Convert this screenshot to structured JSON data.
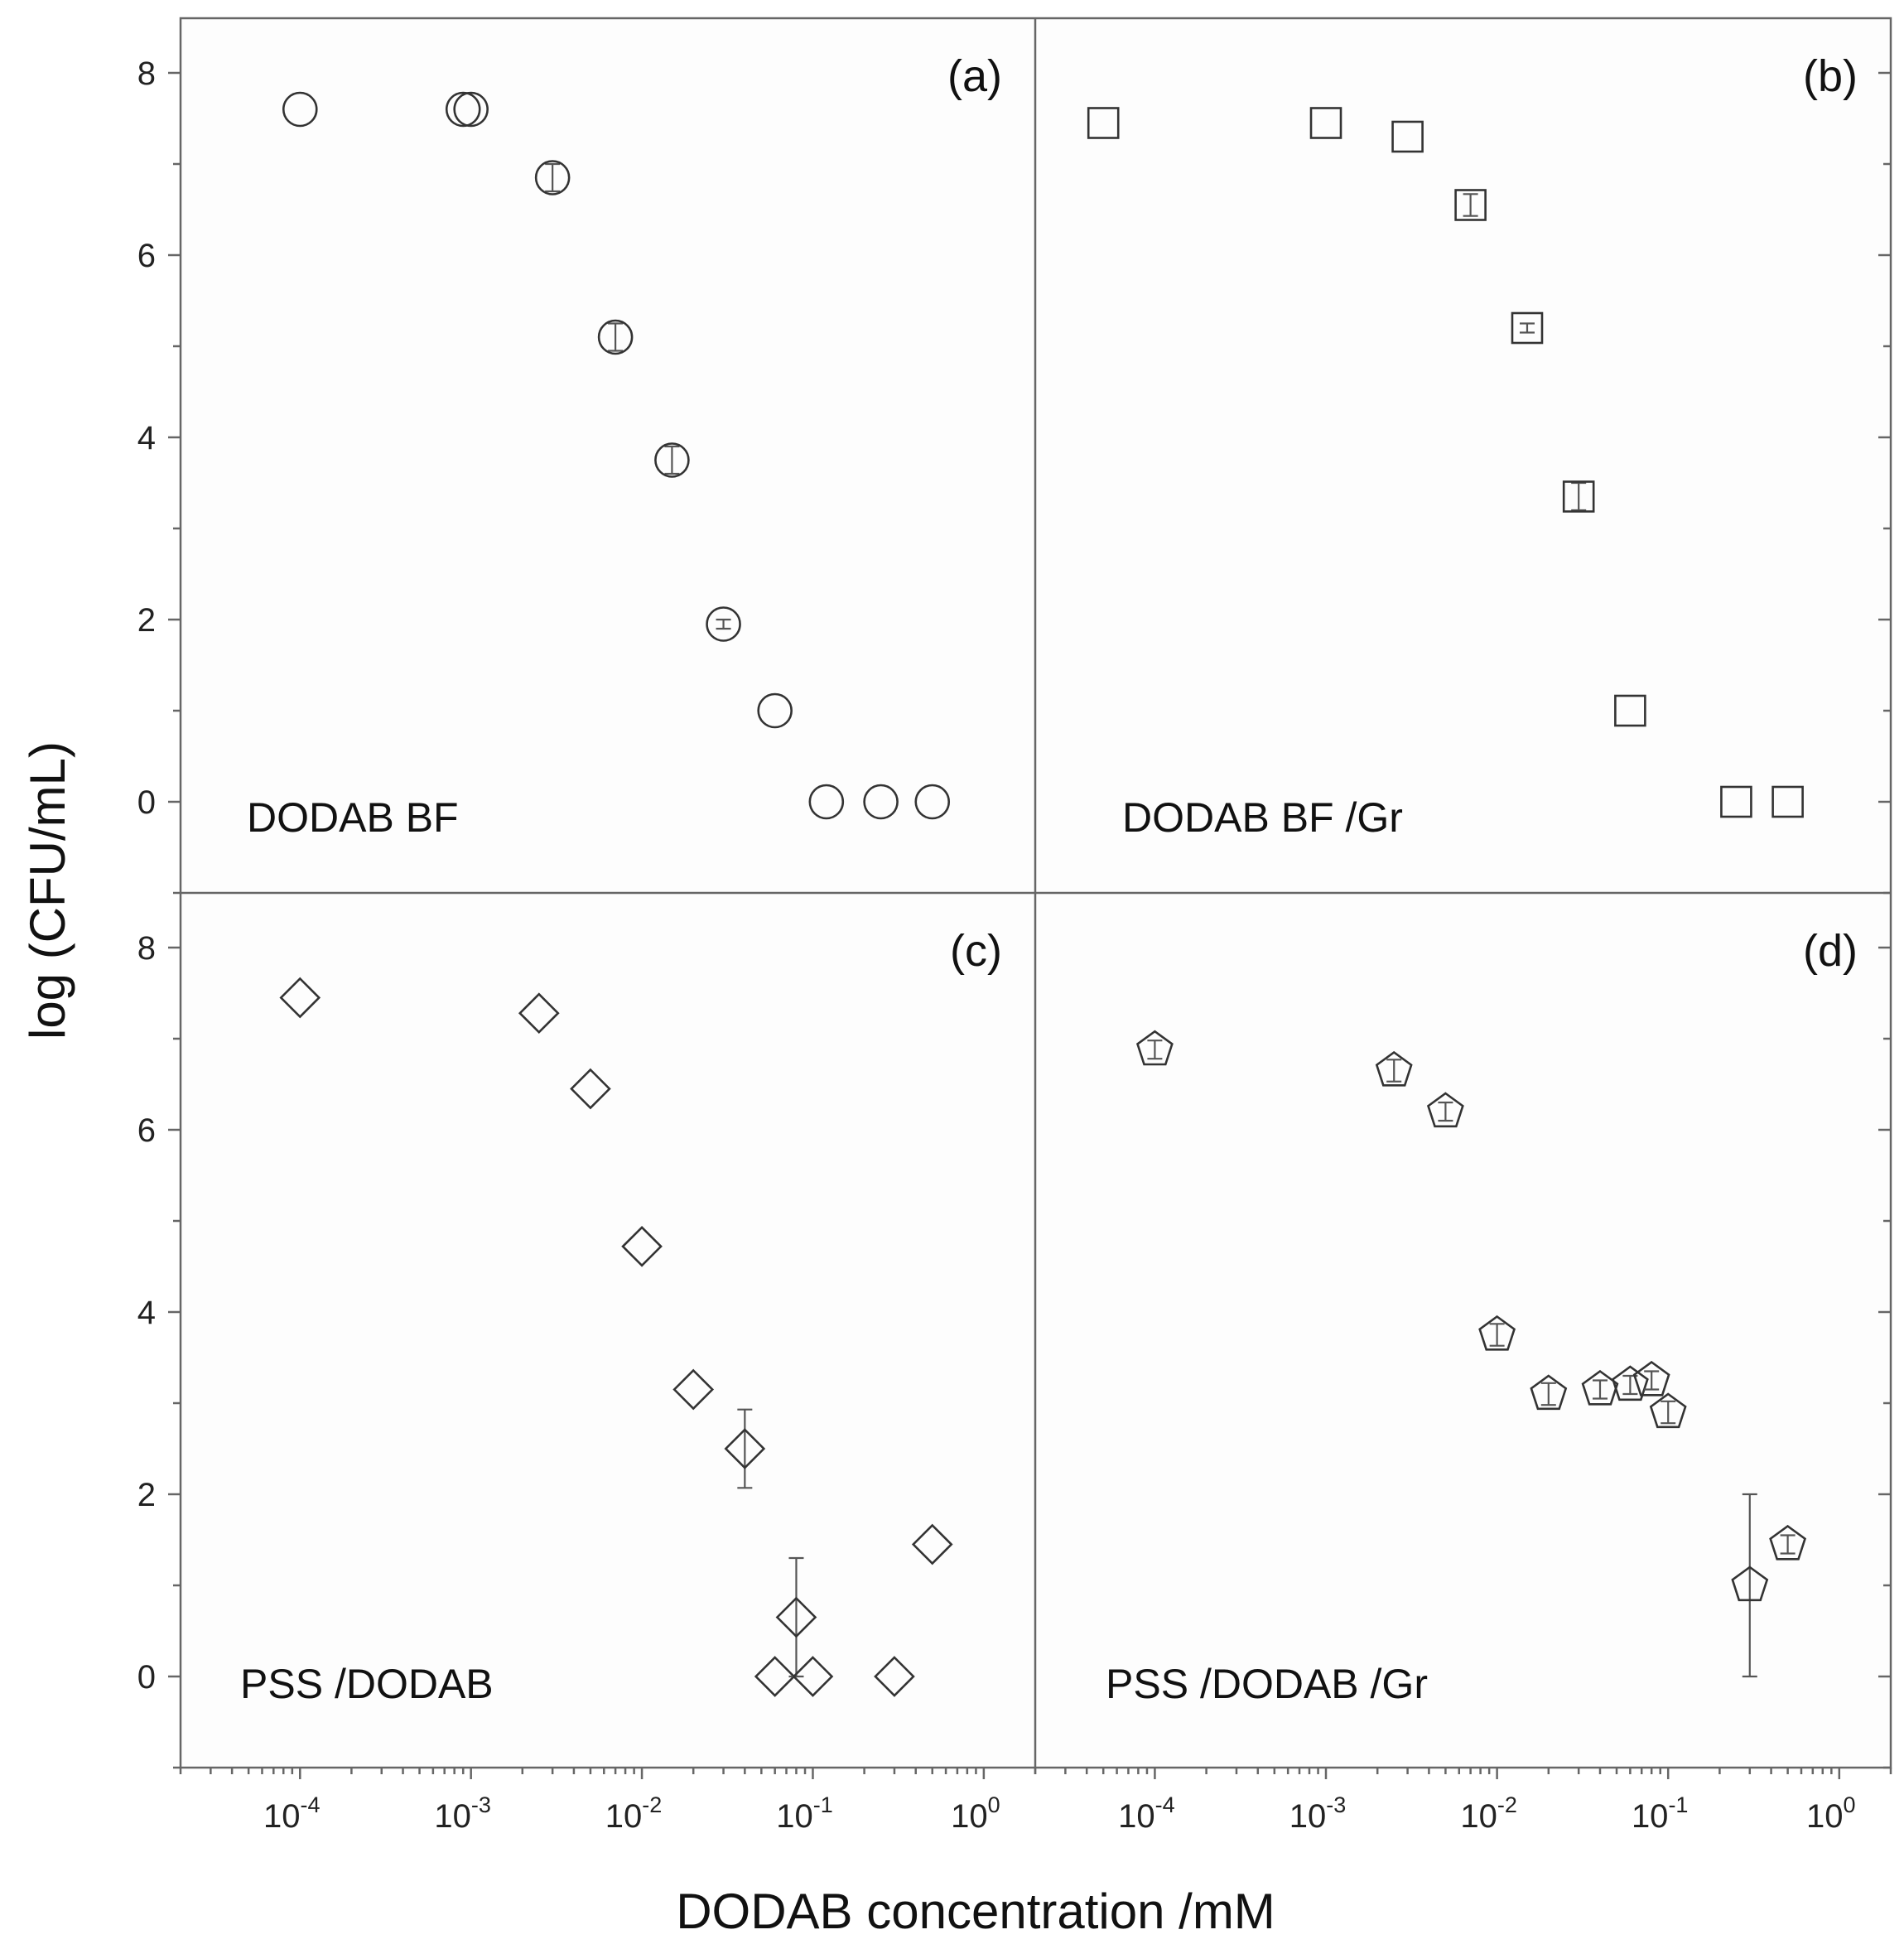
{
  "chart_data": {
    "type": "scatter",
    "xlabel": "DODAB concentration /mM",
    "ylabel": "log (CFU/mL)",
    "x_scale": "log",
    "x_tick_labels": [
      {
        "base": "10",
        "exp": "-4",
        "value": 0.0001
      },
      {
        "base": "10",
        "exp": "-3",
        "value": 0.001
      },
      {
        "base": "10",
        "exp": "-2",
        "value": 0.01
      },
      {
        "base": "10",
        "exp": "-1",
        "value": 0.1
      },
      {
        "base": "10",
        "exp": "0",
        "value": 1
      }
    ],
    "y_tick_labels": [
      0,
      2,
      4,
      6,
      8
    ],
    "xlim": [
      2e-05,
      2
    ],
    "ylim": [
      -1,
      8.6
    ],
    "panels": [
      {
        "letter": "(a)",
        "name": "DODAB BF",
        "marker": "circle",
        "points": [
          {
            "x": 0.0001,
            "y": 7.6,
            "err": 0
          },
          {
            "x": 0.0009,
            "y": 7.6,
            "err": 0
          },
          {
            "x": 0.001,
            "y": 7.6,
            "err": 0
          },
          {
            "x": 0.003,
            "y": 6.85,
            "err": 0.15
          },
          {
            "x": 0.007,
            "y": 5.1,
            "err": 0.15
          },
          {
            "x": 0.015,
            "y": 3.75,
            "err": 0.15
          },
          {
            "x": 0.03,
            "y": 1.95,
            "err": 0.05
          },
          {
            "x": 0.06,
            "y": 1.0,
            "err": 0
          },
          {
            "x": 0.12,
            "y": 0.0,
            "err": 0
          },
          {
            "x": 0.25,
            "y": 0.0,
            "err": 0
          },
          {
            "x": 0.5,
            "y": 0.0,
            "err": 0
          }
        ]
      },
      {
        "letter": "(b)",
        "name": "DODAB BF /Gr",
        "marker": "square",
        "points": [
          {
            "x": 5e-05,
            "y": 7.45,
            "err": 0
          },
          {
            "x": 0.001,
            "y": 7.45,
            "err": 0
          },
          {
            "x": 0.003,
            "y": 7.3,
            "err": 0
          },
          {
            "x": 0.007,
            "y": 6.55,
            "err": 0.12
          },
          {
            "x": 0.015,
            "y": 5.2,
            "err": 0.05
          },
          {
            "x": 0.03,
            "y": 3.35,
            "err": 0.15
          },
          {
            "x": 0.06,
            "y": 1.0,
            "err": 0
          },
          {
            "x": 0.25,
            "y": 0.0,
            "err": 0
          },
          {
            "x": 0.5,
            "y": 0.0,
            "err": 0
          }
        ]
      },
      {
        "letter": "(c)",
        "name": "PSS /DODAB",
        "marker": "diamond",
        "points": [
          {
            "x": 0.0001,
            "y": 7.45,
            "err": 0
          },
          {
            "x": 0.0025,
            "y": 7.28,
            "err": 0
          },
          {
            "x": 0.005,
            "y": 6.45,
            "err": 0
          },
          {
            "x": 0.01,
            "y": 4.72,
            "err": 0
          },
          {
            "x": 0.02,
            "y": 3.15,
            "err": 0
          },
          {
            "x": 0.04,
            "y": 2.5,
            "err": 0.43
          },
          {
            "x": 0.06,
            "y": 0.0,
            "err": 0
          },
          {
            "x": 0.08,
            "y": 0.65,
            "err": 0.65
          },
          {
            "x": 0.1,
            "y": 0.0,
            "err": 0
          },
          {
            "x": 0.3,
            "y": 0.0,
            "err": 0
          },
          {
            "x": 0.5,
            "y": 1.45,
            "err": 0
          }
        ]
      },
      {
        "letter": "(d)",
        "name": "PSS /DODAB /Gr",
        "marker": "pentagon",
        "points": [
          {
            "x": 0.0001,
            "y": 6.88,
            "err": 0.1
          },
          {
            "x": 0.0025,
            "y": 6.65,
            "err": 0.12
          },
          {
            "x": 0.005,
            "y": 6.2,
            "err": 0.1
          },
          {
            "x": 0.01,
            "y": 3.75,
            "err": 0.12
          },
          {
            "x": 0.02,
            "y": 3.1,
            "err": 0.12
          },
          {
            "x": 0.04,
            "y": 3.15,
            "err": 0.1
          },
          {
            "x": 0.06,
            "y": 3.2,
            "err": 0.1
          },
          {
            "x": 0.08,
            "y": 3.25,
            "err": 0.1
          },
          {
            "x": 0.1,
            "y": 2.9,
            "err": 0.12
          },
          {
            "x": 0.3,
            "y": 1.0,
            "err": 1.0
          },
          {
            "x": 0.5,
            "y": 1.45,
            "err": 0.1
          }
        ]
      }
    ]
  }
}
